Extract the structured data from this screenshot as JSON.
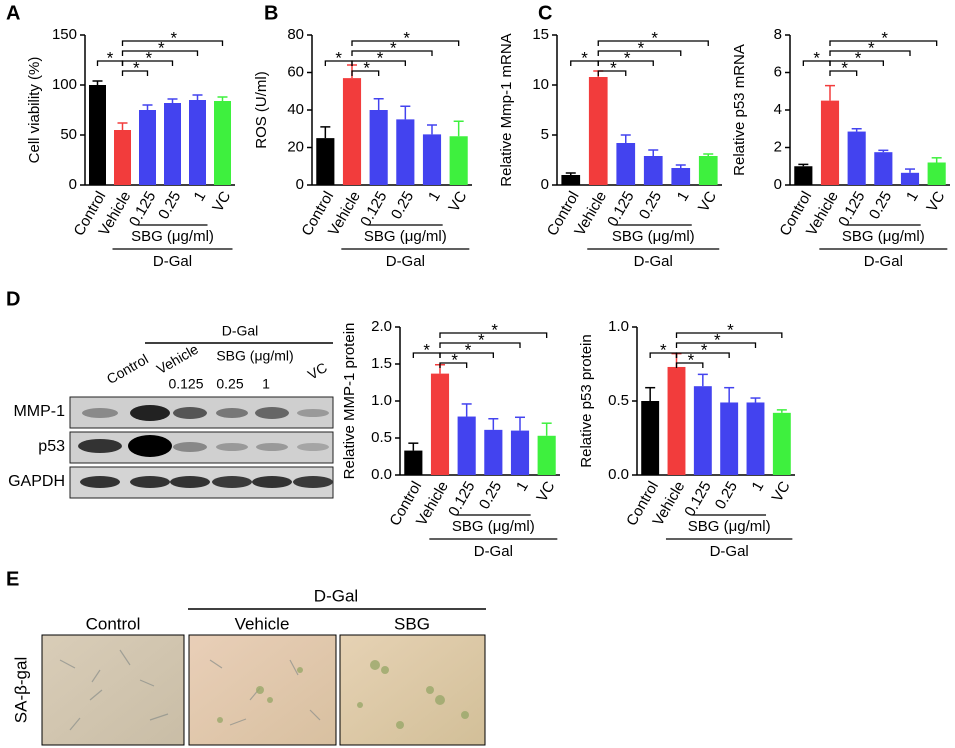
{
  "panels": {
    "a": "A",
    "b": "B",
    "c": "C",
    "d": "D",
    "e": "E"
  },
  "chart_data": [
    {
      "type": "bar",
      "y_label": "Cell viability (%)",
      "categories": [
        "Control",
        "Vehicle",
        "0.125",
        "0.25",
        "1",
        "VC"
      ],
      "values": [
        100,
        55,
        75,
        82,
        85,
        84
      ],
      "errors": [
        4,
        7,
        5,
        4,
        5,
        4
      ],
      "colors": [
        "#000000",
        "#f23c3c",
        "#4343ef",
        "#4343ef",
        "#4343ef",
        "#3ef03e"
      ],
      "ylim": [
        0,
        150
      ],
      "yticks": [
        0,
        50,
        100,
        150
      ],
      "subgroup_label": "SBG (μg/ml)",
      "group_label": "D-Gal",
      "significance": [
        {
          "from": 0,
          "to": 1,
          "label": "*"
        },
        {
          "from": 1,
          "to": 2,
          "label": "*"
        },
        {
          "from": 1,
          "to": 3,
          "label": "*"
        },
        {
          "from": 1,
          "to": 4,
          "label": "*"
        },
        {
          "from": 1,
          "to": 5,
          "label": "*"
        }
      ]
    },
    {
      "type": "bar",
      "y_label": "ROS (U/ml)",
      "categories": [
        "Control",
        "Vehicle",
        "0.125",
        "0.25",
        "1",
        "VC"
      ],
      "values": [
        25,
        57,
        40,
        35,
        27,
        26
      ],
      "errors": [
        6,
        7,
        6,
        7,
        5,
        8
      ],
      "colors": [
        "#000000",
        "#f23c3c",
        "#4343ef",
        "#4343ef",
        "#4343ef",
        "#3ef03e"
      ],
      "ylim": [
        0,
        80
      ],
      "yticks": [
        0,
        20,
        40,
        60,
        80
      ],
      "subgroup_label": "SBG (μg/ml)",
      "group_label": "D-Gal",
      "significance": [
        {
          "from": 0,
          "to": 1,
          "label": "*"
        },
        {
          "from": 1,
          "to": 2,
          "label": "*"
        },
        {
          "from": 1,
          "to": 3,
          "label": "*"
        },
        {
          "from": 1,
          "to": 4,
          "label": "*"
        },
        {
          "from": 1,
          "to": 5,
          "label": "*"
        }
      ]
    },
    {
      "type": "bar",
      "y_label": "Relative Mmp-1 mRNA",
      "categories": [
        "Control",
        "Vehicle",
        "0.125",
        "0.25",
        "1",
        "VC"
      ],
      "values": [
        1.0,
        10.8,
        4.2,
        2.9,
        1.7,
        2.9
      ],
      "errors": [
        0.2,
        0.6,
        0.8,
        0.6,
        0.3,
        0.2
      ],
      "colors": [
        "#000000",
        "#f23c3c",
        "#4343ef",
        "#4343ef",
        "#4343ef",
        "#3ef03e"
      ],
      "ylim": [
        0,
        15
      ],
      "yticks": [
        0,
        5,
        10,
        15
      ],
      "subgroup_label": "SBG (μg/ml)",
      "group_label": "D-Gal",
      "significance": [
        {
          "from": 0,
          "to": 1,
          "label": "*"
        },
        {
          "from": 1,
          "to": 2,
          "label": "*"
        },
        {
          "from": 1,
          "to": 3,
          "label": "*"
        },
        {
          "from": 1,
          "to": 4,
          "label": "*"
        },
        {
          "from": 1,
          "to": 5,
          "label": "*"
        }
      ]
    },
    {
      "type": "bar",
      "y_label": "Relative p53 mRNA",
      "categories": [
        "Control",
        "Vehicle",
        "0.125",
        "0.25",
        "1",
        "VC"
      ],
      "values": [
        1.0,
        4.5,
        2.85,
        1.75,
        0.65,
        1.2
      ],
      "errors": [
        0.1,
        0.8,
        0.15,
        0.1,
        0.2,
        0.25
      ],
      "colors": [
        "#000000",
        "#f23c3c",
        "#4343ef",
        "#4343ef",
        "#4343ef",
        "#3ef03e"
      ],
      "ylim": [
        0,
        8
      ],
      "yticks": [
        0,
        2,
        4,
        6,
        8
      ],
      "subgroup_label": "SBG (μg/ml)",
      "group_label": "D-Gal",
      "significance": [
        {
          "from": 0,
          "to": 1,
          "label": "*"
        },
        {
          "from": 1,
          "to": 2,
          "label": "*"
        },
        {
          "from": 1,
          "to": 3,
          "label": "*"
        },
        {
          "from": 1,
          "to": 4,
          "label": "*"
        },
        {
          "from": 1,
          "to": 5,
          "label": "*"
        }
      ]
    },
    {
      "type": "bar",
      "y_label": "Relative MMP-1 protein",
      "categories": [
        "Control",
        "Vehicle",
        "0.125",
        "0.25",
        "1",
        "VC"
      ],
      "values": [
        0.33,
        1.37,
        0.79,
        0.61,
        0.6,
        0.53
      ],
      "errors": [
        0.1,
        0.12,
        0.17,
        0.15,
        0.18,
        0.17
      ],
      "colors": [
        "#000000",
        "#f23c3c",
        "#4343ef",
        "#4343ef",
        "#4343ef",
        "#3ef03e"
      ],
      "ylim": [
        0,
        2
      ],
      "yticks": [
        {
          "value": 0,
          "label": "0.0"
        },
        0.5,
        {
          "value": 1,
          "label": "1.0"
        },
        1.5,
        {
          "value": 2,
          "label": "2.0"
        }
      ],
      "subgroup_label": "SBG (μg/ml)",
      "group_label": "D-Gal",
      "significance": [
        {
          "from": 0,
          "to": 1,
          "label": "*"
        },
        {
          "from": 1,
          "to": 2,
          "label": "*"
        },
        {
          "from": 1,
          "to": 3,
          "label": "*"
        },
        {
          "from": 1,
          "to": 4,
          "label": "*"
        },
        {
          "from": 1,
          "to": 5,
          "label": "*"
        }
      ]
    },
    {
      "type": "bar",
      "y_label": "Relative p53 protein",
      "categories": [
        "Control",
        "Vehicle",
        "0.125",
        "0.25",
        "1",
        "VC"
      ],
      "values": [
        0.5,
        0.73,
        0.6,
        0.49,
        0.49,
        0.42
      ],
      "errors": [
        0.09,
        0.09,
        0.08,
        0.1,
        0.03,
        0.02
      ],
      "colors": [
        "#000000",
        "#f23c3c",
        "#4343ef",
        "#4343ef",
        "#4343ef",
        "#3ef03e"
      ],
      "ylim": [
        0,
        1
      ],
      "yticks": [
        {
          "value": 0,
          "label": "0.0"
        },
        0.5,
        {
          "value": 1,
          "label": "1.0"
        }
      ],
      "subgroup_label": "SBG (μg/ml)",
      "group_label": "D-Gal",
      "significance": [
        {
          "from": 0,
          "to": 1,
          "label": "*"
        },
        {
          "from": 1,
          "to": 2,
          "label": "*"
        },
        {
          "from": 1,
          "to": 3,
          "label": "*"
        },
        {
          "from": 1,
          "to": 4,
          "label": "*"
        },
        {
          "from": 1,
          "to": 5,
          "label": "*"
        }
      ]
    }
  ],
  "blot": {
    "group_label": "D-Gal",
    "subgroup_label": "SBG (μg/ml)",
    "lanes": [
      "Control",
      "Vehicle",
      "0.125",
      "0.25",
      "1",
      "VC"
    ],
    "rows": [
      "MMP-1",
      "p53",
      "GAPDH"
    ]
  },
  "images": {
    "group_label": "D-Gal",
    "columns": [
      "Control",
      "Vehicle",
      "SBG"
    ],
    "row_label": "SA-β-gal"
  }
}
